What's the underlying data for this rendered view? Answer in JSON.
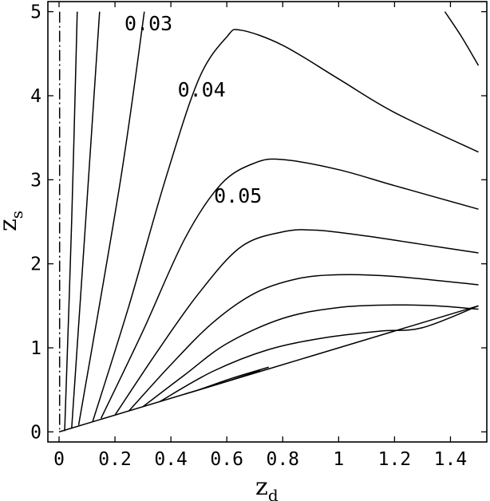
{
  "chart_data": {
    "type": "line",
    "title": "",
    "xlabel": {
      "main": "z",
      "sub": "d"
    },
    "ylabel": {
      "main": "z",
      "sub": "s"
    },
    "xlim": [
      -0.04,
      1.53
    ],
    "ylim": [
      -0.12,
      5.12
    ],
    "grid": false,
    "x_ticks": [
      0,
      0.2,
      0.4,
      0.6,
      0.8,
      1,
      1.2,
      1.4
    ],
    "x_tick_labels": [
      "0",
      "0.2",
      "0.4",
      "0.6",
      "0.8",
      "1",
      "1.2",
      "1.4"
    ],
    "y_ticks": [
      0,
      1,
      2,
      3,
      4,
      5
    ],
    "y_tick_labels": [
      "0",
      "1",
      "2",
      "3",
      "4",
      "5"
    ],
    "contour_labels": [
      {
        "text": "0.03",
        "x": 0.32,
        "y": 4.78
      },
      {
        "text": "0.04",
        "x": 0.51,
        "y": 3.99
      },
      {
        "text": "0.05",
        "x": 0.64,
        "y": 2.73
      }
    ],
    "series": [
      {
        "style": "dashed",
        "points": [
          [
            0.002,
            5.0
          ],
          [
            0.002,
            0.03
          ]
        ]
      },
      {
        "points": [
          [
            0.02,
            0.01
          ],
          [
            0.045,
            2.5
          ],
          [
            0.065,
            5.0
          ]
        ]
      },
      {
        "points": [
          [
            0.045,
            0.04
          ],
          [
            0.095,
            2.5
          ],
          [
            0.145,
            5.0
          ]
        ]
      },
      {
        "points": [
          [
            0.07,
            0.08
          ],
          [
            0.22,
            3.0
          ],
          [
            0.305,
            5.0
          ]
        ]
      },
      {
        "points": [
          [
            0.12,
            0.12
          ],
          [
            0.25,
            1.5
          ],
          [
            0.38,
            3.0
          ],
          [
            0.5,
            4.2
          ],
          [
            0.6,
            4.7
          ],
          [
            0.65,
            4.78
          ],
          [
            0.8,
            4.6
          ],
          [
            1.0,
            4.2
          ],
          [
            1.2,
            3.8
          ],
          [
            1.5,
            3.33
          ]
        ]
      },
      {
        "points": [
          [
            0.15,
            0.16
          ],
          [
            0.3,
            1.2
          ],
          [
            0.45,
            2.3
          ],
          [
            0.58,
            2.95
          ],
          [
            0.7,
            3.2
          ],
          [
            0.8,
            3.24
          ],
          [
            1.0,
            3.12
          ],
          [
            1.2,
            2.93
          ],
          [
            1.5,
            2.65
          ]
        ]
      },
      {
        "points": [
          [
            0.2,
            0.2
          ],
          [
            0.35,
            0.95
          ],
          [
            0.5,
            1.65
          ],
          [
            0.65,
            2.2
          ],
          [
            0.8,
            2.38
          ],
          [
            0.92,
            2.4
          ],
          [
            1.1,
            2.33
          ],
          [
            1.3,
            2.23
          ],
          [
            1.5,
            2.13
          ]
        ]
      },
      {
        "points": [
          [
            0.25,
            0.25
          ],
          [
            0.4,
            0.8
          ],
          [
            0.55,
            1.3
          ],
          [
            0.7,
            1.65
          ],
          [
            0.85,
            1.82
          ],
          [
            1.0,
            1.87
          ],
          [
            1.2,
            1.85
          ],
          [
            1.5,
            1.75
          ]
        ]
      },
      {
        "points": [
          [
            0.3,
            0.3
          ],
          [
            0.45,
            0.68
          ],
          [
            0.6,
            1.05
          ],
          [
            0.8,
            1.35
          ],
          [
            1.0,
            1.48
          ],
          [
            1.2,
            1.51
          ],
          [
            1.35,
            1.5
          ],
          [
            1.5,
            1.46
          ]
        ]
      },
      {
        "points": [
          [
            0.36,
            0.36
          ],
          [
            0.55,
            0.72
          ],
          [
            0.75,
            0.98
          ],
          [
            0.95,
            1.12
          ],
          [
            1.15,
            1.2
          ],
          [
            1.3,
            1.24
          ],
          [
            1.5,
            1.5
          ]
        ]
      },
      {
        "points": [
          [
            0.45,
            0.45
          ],
          [
            0.6,
            0.6
          ],
          [
            0.72,
            0.73
          ]
        ]
      },
      {
        "points": [
          [
            0.5,
            0.5
          ],
          [
            0.62,
            0.64
          ],
          [
            0.75,
            0.77
          ]
        ]
      },
      {
        "points": [
          [
            1.38,
            5.0
          ],
          [
            1.44,
            4.7
          ],
          [
            1.5,
            4.36
          ]
        ]
      },
      {
        "style": "thick",
        "points": [
          [
            0.0,
            0.0
          ],
          [
            1.5,
            1.5
          ]
        ]
      }
    ]
  }
}
